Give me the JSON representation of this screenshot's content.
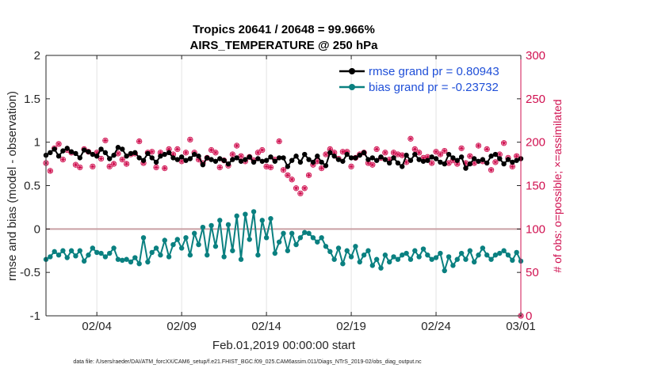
{
  "chart_data": {
    "type": "line",
    "title": "Tropics 20641 / 20648 = 99.966%",
    "subtitle": "AIRS_TEMPERATURE @ 250 hPa",
    "xlabel": "Feb.01,2019 00:00:00 start",
    "ylabel": "rmse and bias (model - observation)",
    "ylabel_right": "# of obs: o=possible; ×=assimilated",
    "footnote": "data file: /Users/raeder/DAI/ATM_forcXX/CAM6_setup/f.e21.FHIST_BGC.f09_025.CAM6assim.011/Diags_NTrS_2019-02/obs_diag_output.nc",
    "ylim": [
      -1,
      2
    ],
    "ylim_right": [
      0,
      300
    ],
    "xlim": [
      1.0,
      29.0
    ],
    "y_ticks": [
      "-1",
      "-0.5",
      "0",
      "0.5",
      "1",
      "1.5",
      "2"
    ],
    "y_tick_values": [
      -1,
      -0.5,
      0,
      0.5,
      1,
      1.5,
      2
    ],
    "y2_ticks": [
      "0",
      "50",
      "100",
      "150",
      "200",
      "250",
      "300"
    ],
    "y2_tick_values": [
      0,
      50,
      100,
      150,
      200,
      250,
      300
    ],
    "x_ticks": [
      "02/04",
      "02/09",
      "02/14",
      "02/19",
      "02/24",
      "03/01"
    ],
    "x_tick_values": [
      4,
      9,
      14,
      19,
      24,
      29
    ],
    "legend": [
      {
        "label": "rmse grand pr = 0.80943",
        "color": "#000000"
      },
      {
        "label": "bias grand pr = -0.23732",
        "color": "#0a8080"
      }
    ],
    "series": [
      {
        "name": "rmse",
        "color": "#000000",
        "x": [
          1.0,
          1.25,
          1.5,
          1.75,
          2.0,
          2.25,
          2.5,
          2.75,
          3.0,
          3.25,
          3.5,
          3.75,
          4.0,
          4.25,
          4.5,
          4.75,
          5.0,
          5.25,
          5.5,
          5.75,
          6.0,
          6.25,
          6.5,
          6.75,
          7.0,
          7.25,
          7.5,
          7.75,
          8.0,
          8.25,
          8.5,
          8.75,
          9.0,
          9.25,
          9.5,
          9.75,
          10.0,
          10.25,
          10.5,
          10.75,
          11.0,
          11.25,
          11.5,
          11.75,
          12.0,
          12.25,
          12.5,
          12.75,
          13.0,
          13.25,
          13.5,
          13.75,
          14.0,
          14.25,
          14.5,
          14.75,
          15.0,
          15.25,
          15.5,
          15.75,
          16.0,
          16.25,
          16.5,
          16.75,
          17.0,
          17.25,
          17.5,
          17.75,
          18.0,
          18.25,
          18.5,
          18.75,
          19.0,
          19.25,
          19.5,
          19.75,
          20.0,
          20.25,
          20.5,
          20.75,
          21.0,
          21.25,
          21.5,
          21.75,
          22.0,
          22.25,
          22.5,
          22.75,
          23.0,
          23.25,
          23.5,
          23.75,
          24.0,
          24.25,
          24.5,
          24.75,
          25.0,
          25.25,
          25.5,
          25.75,
          26.0,
          26.25,
          26.5,
          26.75,
          27.0,
          27.25,
          27.5,
          27.75,
          28.0,
          28.25,
          28.5,
          28.75,
          29.0
        ],
        "values": [
          0.85,
          0.88,
          0.92,
          0.84,
          0.9,
          0.93,
          0.89,
          0.87,
          0.82,
          0.91,
          0.89,
          0.86,
          0.84,
          0.92,
          0.88,
          0.81,
          0.85,
          0.94,
          0.92,
          0.84,
          0.87,
          0.88,
          0.82,
          0.79,
          0.87,
          0.82,
          0.77,
          0.84,
          0.86,
          0.88,
          0.82,
          0.8,
          0.83,
          0.79,
          0.81,
          0.86,
          0.84,
          0.74,
          0.82,
          0.8,
          0.78,
          0.81,
          0.79,
          0.75,
          0.8,
          0.82,
          0.78,
          0.8,
          0.83,
          0.77,
          0.81,
          0.78,
          0.79,
          0.83,
          0.78,
          0.82,
          0.82,
          0.72,
          0.79,
          0.84,
          0.77,
          0.86,
          0.8,
          0.77,
          0.84,
          0.77,
          0.73,
          0.88,
          0.84,
          0.8,
          0.78,
          0.86,
          0.82,
          0.82,
          0.85,
          0.88,
          0.8,
          0.82,
          0.79,
          0.83,
          0.8,
          0.76,
          0.82,
          0.76,
          0.72,
          0.85,
          0.79,
          0.86,
          0.8,
          0.78,
          0.79,
          0.83,
          0.81,
          0.77,
          0.75,
          0.86,
          0.82,
          0.79,
          0.83,
          0.7,
          0.75,
          0.81,
          0.78,
          0.8,
          0.76,
          0.84,
          0.86,
          0.81,
          0.75,
          0.8,
          0.77,
          0.79,
          0.81
        ]
      },
      {
        "name": "bias",
        "color": "#0a8080",
        "x": [
          1.0,
          1.25,
          1.5,
          1.75,
          2.0,
          2.25,
          2.5,
          2.75,
          3.0,
          3.25,
          3.5,
          3.75,
          4.0,
          4.25,
          4.5,
          4.75,
          5.0,
          5.25,
          5.5,
          5.75,
          6.0,
          6.25,
          6.5,
          6.75,
          7.0,
          7.25,
          7.5,
          7.75,
          8.0,
          8.25,
          8.5,
          8.75,
          9.0,
          9.25,
          9.5,
          9.75,
          10.0,
          10.25,
          10.5,
          10.75,
          11.0,
          11.25,
          11.5,
          11.75,
          12.0,
          12.25,
          12.5,
          12.75,
          13.0,
          13.25,
          13.5,
          13.75,
          14.0,
          14.25,
          14.5,
          14.75,
          15.0,
          15.25,
          15.5,
          15.75,
          16.0,
          16.25,
          16.5,
          16.75,
          17.0,
          17.25,
          17.5,
          17.75,
          18.0,
          18.25,
          18.5,
          18.75,
          19.0,
          19.25,
          19.5,
          19.75,
          20.0,
          20.25,
          20.5,
          20.75,
          21.0,
          21.25,
          21.5,
          21.75,
          22.0,
          22.25,
          22.5,
          22.75,
          23.0,
          23.25,
          23.5,
          23.75,
          24.0,
          24.25,
          24.5,
          24.75,
          25.0,
          25.25,
          25.5,
          25.75,
          26.0,
          26.25,
          26.5,
          26.75,
          27.0,
          27.25,
          27.5,
          27.75,
          28.0,
          28.25,
          28.5,
          28.75,
          29.0
        ],
        "values": [
          -0.35,
          -0.32,
          -0.26,
          -0.3,
          -0.25,
          -0.33,
          -0.25,
          -0.31,
          -0.25,
          -0.37,
          -0.3,
          -0.22,
          -0.27,
          -0.28,
          -0.32,
          -0.28,
          -0.22,
          -0.35,
          -0.36,
          -0.35,
          -0.38,
          -0.33,
          -0.4,
          -0.1,
          -0.38,
          -0.27,
          -0.22,
          -0.3,
          -0.13,
          -0.32,
          -0.18,
          -0.12,
          -0.22,
          -0.1,
          -0.3,
          -0.05,
          -0.18,
          0.02,
          -0.3,
          0.04,
          -0.2,
          0.1,
          -0.32,
          0.05,
          -0.25,
          0.15,
          -0.35,
          0.17,
          -0.12,
          0.2,
          -0.3,
          0.1,
          -0.1,
          0.12,
          -0.28,
          -0.15,
          -0.05,
          -0.25,
          -0.05,
          -0.18,
          -0.1,
          -0.04,
          -0.05,
          -0.1,
          -0.15,
          -0.1,
          -0.2,
          -0.26,
          -0.35,
          -0.22,
          -0.4,
          -0.25,
          -0.32,
          -0.2,
          -0.38,
          -0.3,
          -0.25,
          -0.42,
          -0.35,
          -0.45,
          -0.3,
          -0.38,
          -0.32,
          -0.35,
          -0.3,
          -0.28,
          -0.35,
          -0.25,
          -0.32,
          -0.23,
          -0.3,
          -0.35,
          -0.33,
          -0.28,
          -0.48,
          -0.32,
          -0.42,
          -0.35,
          -0.28,
          -0.35,
          -0.25,
          -0.38,
          -0.3,
          -0.22,
          -0.3,
          -0.35,
          -0.3,
          -0.28,
          -0.25,
          -0.3,
          -0.36,
          -0.27,
          -0.37
        ]
      },
      {
        "name": "obs possible",
        "color": "#d01050",
        "axis": "right",
        "x": [
          1.0,
          1.25,
          1.5,
          1.75,
          2.0,
          2.25,
          2.5,
          2.75,
          3.0,
          3.25,
          3.5,
          3.75,
          4.0,
          4.25,
          4.5,
          4.75,
          5.0,
          5.25,
          5.5,
          5.75,
          6.0,
          6.25,
          6.5,
          6.75,
          7.0,
          7.25,
          7.5,
          7.75,
          8.0,
          8.25,
          8.5,
          8.75,
          9.0,
          9.25,
          9.5,
          9.75,
          10.0,
          10.25,
          10.5,
          10.75,
          11.0,
          11.25,
          11.5,
          11.75,
          12.0,
          12.25,
          12.5,
          12.75,
          13.0,
          13.25,
          13.5,
          13.75,
          14.0,
          14.25,
          14.5,
          14.75,
          15.0,
          15.25,
          15.5,
          15.75,
          16.0,
          16.25,
          16.5,
          16.75,
          17.0,
          17.25,
          17.5,
          17.75,
          18.0,
          18.25,
          18.5,
          18.75,
          19.0,
          19.25,
          19.5,
          19.75,
          20.0,
          20.25,
          20.5,
          20.75,
          21.0,
          21.25,
          21.5,
          21.75,
          22.0,
          22.25,
          22.5,
          22.75,
          23.0,
          23.25,
          23.5,
          23.75,
          24.0,
          24.25,
          24.5,
          24.75,
          25.0,
          25.25,
          25.5,
          25.75,
          26.0,
          26.25,
          26.5,
          26.75,
          27.0,
          27.25,
          27.5,
          27.75,
          28.0,
          28.25,
          28.5,
          28.75,
          29.0
        ],
        "values": [
          176,
          167,
          193,
          198,
          180,
          191,
          188,
          174,
          171,
          192,
          189,
          172,
          188,
          181,
          202,
          172,
          175,
          187,
          180,
          175,
          186,
          187,
          201,
          176,
          188,
          189,
          171,
          188,
          170,
          192,
          186,
          192,
          178,
          188,
          203,
          188,
          180,
          176,
          182,
          191,
          188,
          171,
          179,
          173,
          186,
          196,
          184,
          178,
          183,
          179,
          188,
          191,
          172,
          171,
          180,
          201,
          168,
          162,
          157,
          147,
          141,
          147,
          162,
          174,
          178,
          170,
          186,
          192,
          188,
          181,
          189,
          189,
          172,
          182,
          186,
          188,
          176,
          174,
          192,
          182,
          188,
          180,
          188,
          186,
          185,
          177,
          204,
          192,
          188,
          182,
          183,
          176,
          189,
          186,
          190,
          176,
          179,
          175,
          193,
          176,
          184,
          176,
          196,
          178,
          192,
          168,
          177,
          186,
          199,
          182,
          172,
          184,
          0
        ]
      }
    ]
  }
}
